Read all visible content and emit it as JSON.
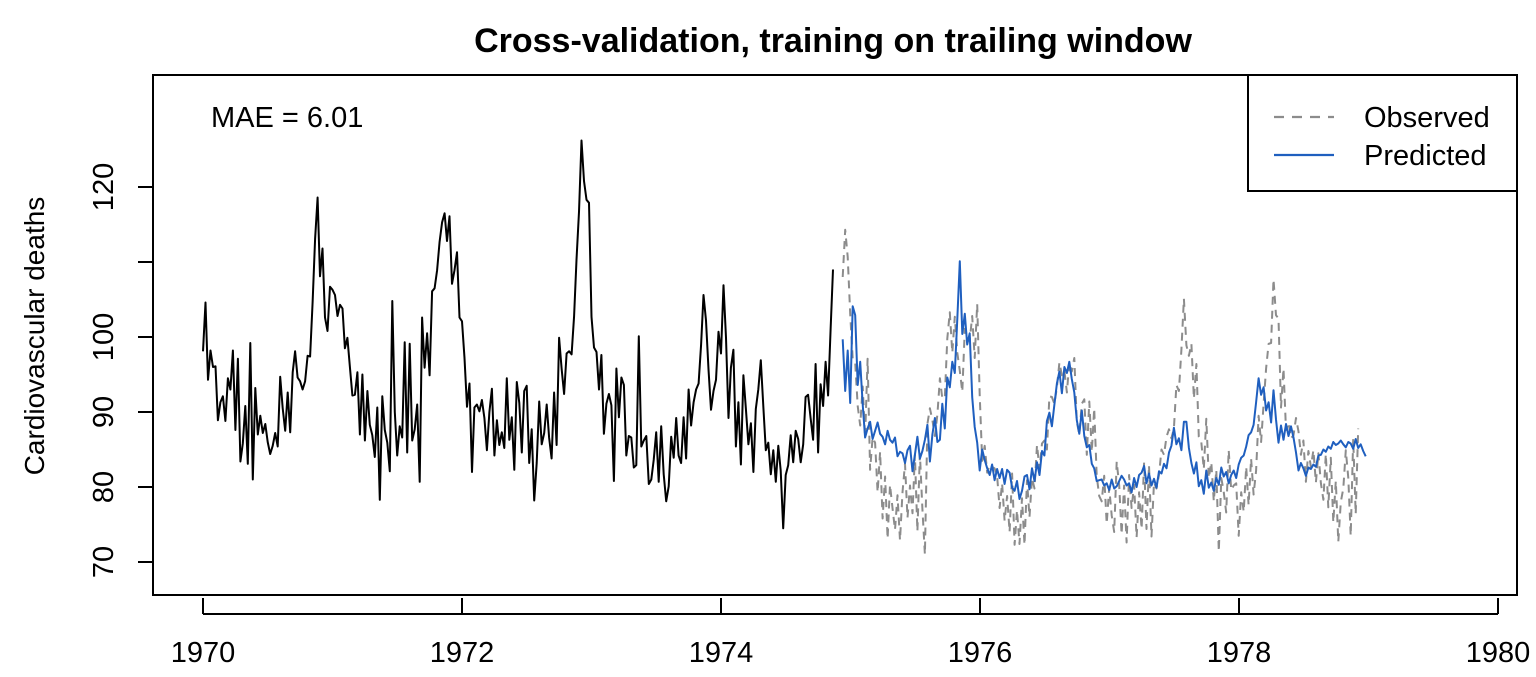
{
  "chart_data": {
    "type": "line",
    "title": "Cross-validation, training on trailing window",
    "xlabel": "",
    "ylabel": "Cardiovascular deaths",
    "annotation": "MAE = 6.01",
    "xlim": [
      1970,
      1980
    ],
    "ylim": [
      65,
      123
    ],
    "x_ticks": [
      1970,
      1972,
      1974,
      1976,
      1978,
      1980
    ],
    "y_ticks": [
      70,
      80,
      90,
      100,
      110,
      120
    ],
    "y_tick_labels": [
      "70",
      "80",
      "90",
      "100",
      "",
      "120"
    ],
    "x_tick_labels": [
      "1970",
      "1972",
      "1974",
      "1976",
      "1978",
      "1980"
    ],
    "grid": false,
    "legend_position": "top-right",
    "weekly_step": 0.01923,
    "series": [
      {
        "name": "",
        "style": "solid",
        "color": "#000000",
        "x_start": 1970.0,
        "values": [
          98.1,
          104.6,
          94.3,
          98.2,
          96.0,
          96.1,
          88.9,
          91.3,
          92.1,
          88.8,
          94.5,
          93.0,
          98.2,
          87.6,
          97.1,
          83.4,
          85.8,
          90.8,
          83.1,
          99.2,
          81.0,
          93.2,
          87.0,
          89.5,
          87.2,
          88.4,
          86.0,
          84.4,
          85.5,
          87.2,
          85.4,
          94.7,
          90.5,
          87.5,
          92.6,
          87.3,
          95.3,
          98.1,
          94.6,
          94.1,
          93.0,
          94.1,
          97.5,
          97.4,
          104.6,
          113.1,
          118.6,
          108.1,
          111.8,
          102.6,
          100.8,
          106.7,
          106.3,
          105.6,
          102.8,
          104.3,
          103.8,
          98.5,
          99.9,
          96.0,
          92.2,
          92.3,
          95.3,
          87.0,
          95.0,
          86.2,
          92.8,
          88.3,
          86.9,
          84.0,
          90.6,
          78.3,
          92.1,
          87.6,
          85.9,
          82.1,
          104.8,
          90.0,
          84.2,
          88.1,
          86.6,
          99.3,
          84.6,
          99.1,
          86.2,
          87.7,
          91.0,
          80.7,
          102.6,
          95.9,
          100.5,
          94.9,
          106.1,
          106.5,
          108.9,
          112.7,
          115.3,
          116.5,
          112.8,
          116.1,
          107.1,
          108.9,
          111.3,
          102.6,
          102.1,
          97.2,
          90.7,
          93.8,
          82.0,
          90.6,
          91.0,
          90.1,
          91.6,
          89.2,
          84.9,
          90.0,
          93.1,
          84.2,
          88.9,
          85.6,
          87.3,
          85.2,
          94.5,
          86.3,
          89.3,
          82.3,
          94.0,
          91.2,
          84.6,
          92.8,
          93.5,
          83.2,
          87.7,
          78.2,
          83.2,
          91.4,
          85.7,
          87.2,
          91.0,
          86.6,
          83.8,
          92.6,
          85.6,
          99.9,
          95.8,
          92.4,
          97.8,
          98.1,
          97.7,
          102.8,
          110.3,
          116.7,
          126.2,
          120.8,
          118.3,
          117.9,
          102.7,
          98.6,
          98.0,
          93.0,
          97.6,
          87.1,
          91.1,
          92.4,
          90.9,
          80.8,
          95.8,
          89.3,
          94.6,
          93.6,
          84.2,
          86.8,
          86.6,
          82.6,
          82.9,
          100.1,
          85.4,
          86.2,
          86.8,
          80.4,
          81.0,
          83.6,
          87.3,
          80.7,
          88.1,
          81.7,
          78.1,
          80.1,
          86.7,
          83.9,
          89.2,
          84.2,
          83.2,
          89.3,
          83.8,
          93.0,
          88.2,
          91.3,
          93.0,
          93.8,
          99.0,
          105.6,
          102.2,
          95.7,
          90.3,
          92.8,
          94.3,
          100.7,
          97.8,
          106.9,
          99.9,
          89.2,
          95.9,
          98.3,
          85.4,
          91.3,
          83.0,
          94.9,
          90.4,
          85.7,
          88.5,
          82.0,
          90.4,
          93.0,
          96.9,
          90.8,
          84.9,
          85.9,
          81.7,
          84.9,
          80.7,
          85.5,
          82.2,
          74.5,
          81.6,
          82.9,
          86.9,
          83.3,
          87.5,
          86.4,
          83.3,
          85.7,
          92.0,
          92.3,
          89.2,
          86.3,
          96.4,
          84.6,
          93.7,
          90.8,
          96.7,
          92.2,
          101.0,
          109.0
        ]
      },
      {
        "name": "Observed",
        "style": "dashed",
        "color": "#8c8c8c",
        "x_start": 1974.94,
        "values": [
          108.0,
          114.3,
          110.7,
          103.1,
          97.1,
          96.6,
          90.8,
          88.2,
          93.4,
          86.6,
          97.1,
          82.3,
          86.6,
          85.9,
          79.3,
          84.7,
          75.8,
          81.4,
          73.1,
          80.3,
          77.2,
          74.3,
          78.9,
          72.9,
          79.3,
          83.1,
          75.9,
          80.2,
          76.5,
          84.3,
          74.1,
          84.4,
          77.1,
          71.0,
          88.4,
          90.5,
          88.9,
          86.8,
          89.7,
          94.5,
          91.8,
          91.9,
          99.8,
          103.3,
          97.9,
          102.7,
          97.9,
          95.5,
          92.7,
          101.1,
          99.7,
          99.5,
          102.8,
          97.2,
          104.4,
          92.3,
          83.5,
          85.5,
          81.9,
          83.0,
          82.7,
          82.5,
          81.5,
          77.2,
          80.5,
          75.5,
          78.8,
          74.0,
          81.8,
          72.3,
          76.9,
          72.4,
          78.5,
          72.3,
          80.9,
          76.0,
          81.2,
          79.8,
          85.6,
          82.4,
          85.8,
          86.2,
          85.0,
          92.1,
          92.0,
          91.1,
          93.3,
          96.6,
          94.9,
          95.5,
          92.6,
          96.6,
          95.4,
          97.2,
          88.7,
          87.0,
          91.1,
          91.7,
          84.3,
          91.4,
          84.7,
          90.5,
          81.5,
          78.8,
          78.1,
          81.5,
          75.1,
          79.9,
          76.2,
          74.0,
          83.4,
          80.2,
          73.7,
          80.2,
          72.6,
          81.6,
          77.2,
          80.3,
          73.3,
          79.3,
          74.4,
          83.3,
          74.4,
          82.9,
          73.4,
          80.6,
          79.8,
          81.6,
          85.0,
          84.3,
          86.7,
          87.7,
          86.5,
          87.8,
          93.6,
          92.8,
          98.3,
          105.1,
          98.9,
          97.5,
          99.1,
          91.8,
          96.4,
          86.7,
          86.0,
          82.4,
          89.1,
          81.2,
          83.3,
          78.1,
          82.3,
          71.4,
          81.2,
          79.4,
          76.6,
          84.9,
          79.6,
          80.2,
          80.5,
          73.5,
          79.3,
          76.7,
          82.7,
          77.6,
          83.8,
          79.0,
          82.2,
          89.5,
          86.0,
          91.1,
          95.8,
          99.1,
          99.2,
          107.7,
          102.9,
          102.5,
          90.6,
          95.8,
          87.6,
          88.6,
          86.5,
          86.9,
          89.2,
          87.4,
          84.3,
          86.2,
          80.7,
          84.8,
          82.7,
          84.9,
          80.6,
          84.5,
          80.5,
          78.3,
          84.4,
          77.3,
          83.9,
          75.3,
          80.8,
          72.7,
          78.0,
          79.8,
          84.9,
          81.2,
          73.5,
          86.4,
          76.4,
          87.8
        ]
      },
      {
        "name": "Predicted",
        "style": "solid",
        "color": "#1f5fbf",
        "x_start": 1974.94,
        "values": [
          99.7,
          92.8,
          98.2,
          91.2,
          104.1,
          102.9,
          93.6,
          96.7,
          91.0,
          86.6,
          87.8,
          88.7,
          86.4,
          87.5,
          88.6,
          87.1,
          86.7,
          85.7,
          87.5,
          86.3,
          85.9,
          86.6,
          84.1,
          84.7,
          84.5,
          83.2,
          84.9,
          85.5,
          82.1,
          84.3,
          86.7,
          83.8,
          84.8,
          86.3,
          88.3,
          83.4,
          87.0,
          89.2,
          86.0,
          86.3,
          91.1,
          87.8,
          94.6,
          93.3,
          96.7,
          95.2,
          102.4,
          110.1,
          100.4,
          103.1,
          99.0,
          100.5,
          92.0,
          88.0,
          85.9,
          82.2,
          85.0,
          83.6,
          82.5,
          81.6,
          83.0,
          80.9,
          82.4,
          81.2,
          82.4,
          80.4,
          82.3,
          81.9,
          79.9,
          79.5,
          80.8,
          78.4,
          79.5,
          81.4,
          81.6,
          79.7,
          82.5,
          80.8,
          83.3,
          81.6,
          84.8,
          84.2,
          88.8,
          89.9,
          88.1,
          91.0,
          93.8,
          95.4,
          92.5,
          96.0,
          95.2,
          96.7,
          94.4,
          92.6,
          88.9,
          87.1,
          90.2,
          86.8,
          85.3,
          85.6,
          83.1,
          82.5,
          80.8,
          80.9,
          81.0,
          80.2,
          80.5,
          79.6,
          81.0,
          79.8,
          80.1,
          80.8,
          81.5,
          81.0,
          80.2,
          80.5,
          79.3,
          81.2,
          80.0,
          81.6,
          81.9,
          82.8,
          80.5,
          81.8,
          80.2,
          81.1,
          79.9,
          82.1,
          81.8,
          83.1,
          82.5,
          84.6,
          85.5,
          87.9,
          85.7,
          86.5,
          84.9,
          88.7,
          88.7,
          85.2,
          83.2,
          81.8,
          83.3,
          80.1,
          80.9,
          79.1,
          82.2,
          79.9,
          80.6,
          79.5,
          81.2,
          80.3,
          82.6,
          81.4,
          82.0,
          80.5,
          81.6,
          82.2,
          81.2,
          83.0,
          83.9,
          84.2,
          85.4,
          86.9,
          87.3,
          88.3,
          91.3,
          94.5,
          92.3,
          93.3,
          90.2,
          91.3,
          88.6,
          92.9,
          89.0,
          85.9,
          88.2,
          86.3,
          88.4,
          86.8,
          88.1,
          86.6,
          84.6,
          82.2,
          83.2,
          82.5,
          81.5,
          82.6,
          82.4,
          83.0,
          82.7,
          84.2,
          84.3,
          85.0,
          84.7,
          85.4,
          85.1,
          86.0,
          85.6,
          85.8,
          86.2,
          85.7,
          85.3,
          86.0,
          85.8,
          85.1,
          86.4,
          85.2,
          85.7,
          84.8,
          84.1
        ]
      }
    ]
  }
}
